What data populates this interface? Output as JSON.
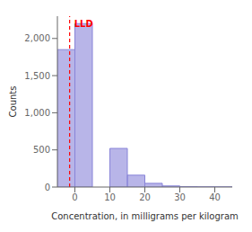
{
  "chart_data": {
    "type": "histogram",
    "xlabel": "Concentration, in milligrams per kilogram",
    "ylabel": "Counts",
    "bins": [
      -5,
      0,
      5,
      10,
      15,
      20,
      25,
      30,
      35,
      40,
      45
    ],
    "values": [
      1850,
      2200,
      0,
      520,
      160,
      50,
      15,
      5,
      2,
      1
    ],
    "color": "#8884d8",
    "xlim": [
      -5,
      45
    ],
    "ylim": [
      0,
      2300
    ],
    "xticks": [
      0,
      10,
      20,
      30,
      40
    ],
    "yticks": [
      0,
      500,
      {
        "value": 1000,
        "label": "1,000"
      },
      {
        "value": 1500,
        "label": "1,500"
      },
      {
        "value": 2000,
        "label": "2,000"
      }
    ],
    "annotations": [
      {
        "x": -1.5,
        "label": "LLD",
        "color": "#ff0000",
        "line_style": "dashed"
      }
    ],
    "grid": false
  }
}
